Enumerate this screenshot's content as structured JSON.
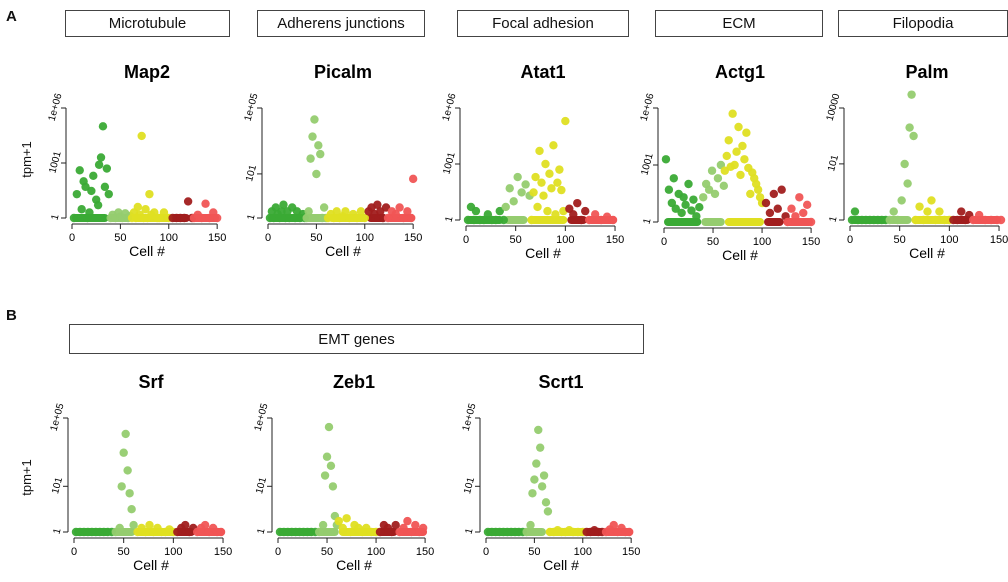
{
  "panels": {
    "A": {
      "letter": "A",
      "ylabel": "tpm+1",
      "categories": [
        "Microtubule",
        "Adherens junctions",
        "Focal adhesion",
        "ECM",
        "Filopodia"
      ]
    },
    "B": {
      "letter": "B",
      "ylabel": "tpm+1",
      "category": "EMT genes"
    }
  },
  "colors": {
    "group1": "#3aaa35",
    "group2": "#95cc6f",
    "group3": "#dfdf22",
    "group4": "#a11d1d",
    "group5": "#f05555"
  },
  "chart_data": [
    {
      "type": "scatter",
      "title": "Map2",
      "xlabel": "Cell #",
      "ylabel": "tpm+1",
      "log_y": true,
      "xlim": [
        0,
        155
      ],
      "yticks": [
        "1",
        "1001",
        "1e+06"
      ],
      "xticks": [
        0,
        50,
        100,
        150
      ],
      "series": [
        {
          "color_key": "group1",
          "x": [
            2,
            5,
            8,
            10,
            12,
            14,
            16,
            18,
            20,
            22,
            25,
            27,
            28,
            30,
            32,
            34,
            36,
            38
          ],
          "y": [
            1,
            20,
            400,
            3,
            100,
            50,
            1,
            2,
            30,
            200,
            10,
            5,
            800,
            2000,
            100000,
            50,
            500,
            20
          ]
        },
        {
          "color_key": "group2",
          "x": [
            40,
            42,
            45,
            48,
            50,
            52,
            55,
            58,
            60
          ],
          "y": [
            1,
            1.5,
            1,
            2,
            1.2,
            1,
            1.8,
            1,
            1.3
          ]
        },
        {
          "color_key": "group3",
          "x": [
            62,
            64,
            66,
            68,
            70,
            72,
            74,
            76,
            78,
            80,
            82,
            85,
            88,
            90,
            95,
            100
          ],
          "y": [
            1,
            2,
            1,
            4,
            1.5,
            30000,
            1,
            3,
            1,
            20,
            1.5,
            2,
            1,
            1,
            2,
            1
          ]
        },
        {
          "color_key": "group4",
          "x": [
            104,
            108,
            112,
            116,
            120,
            124
          ],
          "y": [
            1,
            1,
            1,
            1,
            8,
            1
          ]
        },
        {
          "color_key": "group5",
          "x": [
            126,
            130,
            134,
            138,
            142,
            146,
            150
          ],
          "y": [
            1,
            1.5,
            1,
            6,
            1,
            2,
            1
          ]
        }
      ]
    },
    {
      "type": "scatter",
      "title": "Picalm",
      "xlabel": "Cell #",
      "ylabel": "tpm+1",
      "log_y": true,
      "xlim": [
        0,
        155
      ],
      "yticks": [
        "1",
        "101",
        "1e+05"
      ],
      "xticks": [
        0,
        50,
        100,
        150
      ],
      "series": [
        {
          "color_key": "group1",
          "x": [
            2,
            4,
            6,
            8,
            10,
            12,
            14,
            16,
            18,
            20,
            22,
            25,
            28,
            30,
            33,
            36,
            38
          ],
          "y": [
            1,
            2,
            1,
            3,
            1.5,
            1,
            2,
            4,
            1,
            2,
            1,
            3,
            1,
            2,
            1,
            1.5,
            1
          ]
        },
        {
          "color_key": "group2",
          "x": [
            40,
            42,
            44,
            46,
            48,
            50,
            52,
            54,
            56,
            58,
            60
          ],
          "y": [
            1,
            2,
            500,
            5000,
            30000,
            100,
            2000,
            800,
            1,
            3,
            1
          ]
        },
        {
          "color_key": "group3",
          "x": [
            62,
            65,
            68,
            71,
            74,
            77,
            80,
            84,
            88,
            92,
            96,
            100
          ],
          "y": [
            1,
            1.5,
            1,
            2,
            1,
            1.2,
            2,
            1,
            1.5,
            1,
            2,
            1
          ]
        },
        {
          "color_key": "group4",
          "x": [
            104,
            107,
            110,
            113,
            116,
            119,
            122
          ],
          "y": [
            2,
            3,
            1.5,
            4,
            2,
            1,
            3
          ]
        },
        {
          "color_key": "group5",
          "x": [
            124,
            128,
            132,
            136,
            140,
            144,
            148,
            150
          ],
          "y": [
            1,
            2,
            1.5,
            3,
            1,
            2,
            1,
            60
          ]
        }
      ]
    },
    {
      "type": "scatter",
      "title": "Atat1",
      "xlabel": "Cell #",
      "ylabel": "tpm+1",
      "log_y": true,
      "xlim": [
        0,
        155
      ],
      "yticks": [
        "1",
        "1001",
        "1e+06"
      ],
      "xticks": [
        0,
        50,
        100,
        150
      ],
      "series": [
        {
          "color_key": "group1",
          "x": [
            2,
            5,
            8,
            10,
            14,
            18,
            22,
            26,
            30,
            34,
            38
          ],
          "y": [
            1,
            5,
            1,
            3,
            1,
            1,
            2,
            1,
            1,
            3,
            1
          ]
        },
        {
          "color_key": "group2",
          "x": [
            40,
            44,
            48,
            52,
            56,
            60,
            64
          ],
          "y": [
            5,
            50,
            10,
            200,
            30,
            80,
            20
          ]
        },
        {
          "color_key": "group3",
          "x": [
            66,
            68,
            70,
            72,
            74,
            76,
            78,
            80,
            82,
            84,
            86,
            88,
            90,
            92,
            94,
            96,
            98,
            100
          ],
          "y": [
            1,
            30,
            200,
            5,
            5000,
            100,
            20,
            1000,
            3,
            300,
            50,
            10000,
            2,
            100,
            500,
            40,
            3,
            200000
          ]
        },
        {
          "color_key": "group4",
          "x": [
            104,
            108,
            112,
            116,
            120
          ],
          "y": [
            4,
            2,
            8,
            1,
            3
          ]
        },
        {
          "color_key": "group5",
          "x": [
            124,
            130,
            136,
            142,
            148
          ],
          "y": [
            1,
            2,
            1,
            1.5,
            1
          ]
        }
      ]
    },
    {
      "type": "scatter",
      "title": "Actg1",
      "xlabel": "Cell #",
      "ylabel": "tpm+1",
      "log_y": true,
      "xlim": [
        0,
        155
      ],
      "yticks": [
        "1",
        "1001",
        "1e+06"
      ],
      "xticks": [
        0,
        50,
        100,
        150
      ],
      "series": [
        {
          "color_key": "group1",
          "x": [
            2,
            5,
            8,
            10,
            12,
            15,
            18,
            20,
            22,
            25,
            28,
            30,
            33,
            36
          ],
          "y": [
            2000,
            50,
            10,
            200,
            5,
            30,
            3,
            20,
            8,
            100,
            4,
            15,
            2,
            6
          ]
        },
        {
          "color_key": "group2",
          "x": [
            40,
            43,
            46,
            49,
            52,
            55,
            58,
            61
          ],
          "y": [
            20,
            100,
            50,
            500,
            30,
            200,
            1000,
            80
          ]
        },
        {
          "color_key": "group3",
          "x": [
            62,
            64,
            66,
            68,
            70,
            72,
            74,
            76,
            78,
            80,
            82,
            84,
            86,
            88,
            90,
            92,
            94,
            96,
            98,
            100
          ],
          "y": [
            500,
            3000,
            20000,
            800,
            500000,
            1000,
            5000,
            100000,
            300,
            10000,
            2000,
            50000,
            700,
            30,
            400,
            200,
            100,
            50,
            20,
            10
          ]
        },
        {
          "color_key": "group4",
          "x": [
            104,
            108,
            112,
            116,
            120,
            124
          ],
          "y": [
            10,
            3,
            30,
            5,
            50,
            2
          ]
        },
        {
          "color_key": "group5",
          "x": [
            126,
            130,
            134,
            138,
            142,
            146,
            150
          ],
          "y": [
            1,
            5,
            2,
            20,
            3,
            8,
            1
          ]
        }
      ]
    },
    {
      "type": "scatter",
      "title": "Palm",
      "xlabel": "Cell #",
      "ylabel": "tpm+1",
      "log_y": true,
      "xlim": [
        0,
        155
      ],
      "yticks": [
        "1",
        "101",
        "10000"
      ],
      "xticks": [
        0,
        50,
        100,
        150
      ],
      "series": [
        {
          "color_key": "group1",
          "x": [
            2,
            5,
            8,
            12,
            16,
            20,
            24,
            28,
            32,
            36
          ],
          "y": [
            1,
            2,
            1,
            1,
            1,
            1,
            1,
            1,
            1,
            1
          ]
        },
        {
          "color_key": "group2",
          "x": [
            40,
            44,
            48,
            52,
            55,
            58,
            60,
            62,
            64
          ],
          "y": [
            1,
            2,
            1,
            5,
            100,
            20,
            2000,
            30000,
            1000
          ]
        },
        {
          "color_key": "group3",
          "x": [
            66,
            70,
            74,
            78,
            82,
            86,
            90,
            95,
            100
          ],
          "y": [
            1,
            3,
            1,
            2,
            5,
            1,
            2,
            1,
            1
          ]
        },
        {
          "color_key": "group4",
          "x": [
            104,
            108,
            112,
            116,
            120
          ],
          "y": [
            1,
            1,
            2,
            1,
            1.5
          ]
        },
        {
          "color_key": "group5",
          "x": [
            124,
            130,
            136,
            142,
            148,
            152
          ],
          "y": [
            1,
            1.5,
            1,
            1,
            1,
            1
          ]
        }
      ]
    },
    {
      "type": "scatter",
      "title": "Srf",
      "xlabel": "Cell #",
      "ylabel": "tpm+1",
      "log_y": true,
      "xlim": [
        0,
        155
      ],
      "yticks": [
        "1",
        "101",
        "1e+05"
      ],
      "xticks": [
        0,
        50,
        100,
        150
      ],
      "series": [
        {
          "color_key": "group1",
          "x": [
            2,
            6,
            10,
            14,
            18,
            22,
            26,
            30,
            34,
            38
          ],
          "y": [
            1,
            1,
            1,
            1,
            1,
            1,
            1,
            1,
            1,
            1
          ]
        },
        {
          "color_key": "group2",
          "x": [
            42,
            46,
            48,
            50,
            52,
            54,
            56,
            58,
            60
          ],
          "y": [
            1,
            1.5,
            100,
            3000,
            20000,
            500,
            50,
            10,
            2
          ]
        },
        {
          "color_key": "group3",
          "x": [
            64,
            68,
            72,
            76,
            80,
            84,
            88,
            92,
            96,
            100
          ],
          "y": [
            1,
            1.5,
            1,
            2,
            1,
            1.5,
            1,
            1,
            1.3,
            1
          ]
        },
        {
          "color_key": "group4",
          "x": [
            104,
            108,
            112,
            116,
            120
          ],
          "y": [
            1,
            1.5,
            2,
            1,
            1.5
          ]
        },
        {
          "color_key": "group5",
          "x": [
            124,
            128,
            132,
            136,
            140,
            144,
            148
          ],
          "y": [
            1,
            1.5,
            2,
            1,
            1.5,
            1,
            1
          ]
        }
      ]
    },
    {
      "type": "scatter",
      "title": "Zeb1",
      "xlabel": "Cell #",
      "ylabel": "tpm+1",
      "log_y": true,
      "xlim": [
        0,
        155
      ],
      "yticks": [
        "1",
        "101",
        "1e+05"
      ],
      "xticks": [
        0,
        50,
        100,
        150
      ],
      "series": [
        {
          "color_key": "group1",
          "x": [
            2,
            6,
            10,
            14,
            18,
            22,
            26,
            30,
            34,
            38
          ],
          "y": [
            1,
            1,
            1,
            1,
            1,
            1,
            1,
            1,
            1,
            1
          ]
        },
        {
          "color_key": "group2",
          "x": [
            42,
            46,
            48,
            50,
            52,
            54,
            56,
            58,
            60
          ],
          "y": [
            1,
            2,
            300,
            2000,
            40000,
            800,
            100,
            5,
            2
          ]
        },
        {
          "color_key": "group3",
          "x": [
            62,
            66,
            70,
            74,
            78,
            82,
            86,
            90,
            95,
            100
          ],
          "y": [
            3,
            1.5,
            4,
            1,
            2,
            1.5,
            1,
            1.5,
            1,
            1
          ]
        },
        {
          "color_key": "group4",
          "x": [
            104,
            108,
            112,
            116,
            120
          ],
          "y": [
            1,
            2,
            1.5,
            1,
            2
          ]
        },
        {
          "color_key": "group5",
          "x": [
            124,
            128,
            132,
            136,
            140,
            144,
            148
          ],
          "y": [
            1,
            1.5,
            3,
            1,
            2,
            1,
            1.5
          ]
        }
      ]
    },
    {
      "type": "scatter",
      "title": "Scrt1",
      "xlabel": "Cell #",
      "ylabel": "tpm+1",
      "log_y": true,
      "xlim": [
        0,
        155
      ],
      "yticks": [
        "1",
        "101",
        "1e+05"
      ],
      "xticks": [
        0,
        50,
        100,
        150
      ],
      "series": [
        {
          "color_key": "group1",
          "x": [
            2,
            6,
            10,
            14,
            18,
            22,
            26,
            30,
            34,
            38
          ],
          "y": [
            1,
            1,
            1,
            1,
            1,
            1,
            1,
            1,
            1,
            1
          ]
        },
        {
          "color_key": "group2",
          "x": [
            42,
            46,
            48,
            50,
            52,
            54,
            56,
            58,
            60,
            62,
            64
          ],
          "y": [
            1,
            2,
            50,
            200,
            1000,
            30000,
            5000,
            100,
            300,
            20,
            8
          ]
        },
        {
          "color_key": "group3",
          "x": [
            66,
            70,
            74,
            78,
            82,
            86,
            90,
            95,
            100
          ],
          "y": [
            1,
            1,
            1.2,
            1,
            1,
            1.2,
            1,
            1,
            1
          ]
        },
        {
          "color_key": "group4",
          "x": [
            104,
            108,
            112,
            116,
            120
          ],
          "y": [
            1,
            1,
            1.2,
            1,
            1
          ]
        },
        {
          "color_key": "group5",
          "x": [
            124,
            128,
            132,
            136,
            140,
            144,
            148
          ],
          "y": [
            1,
            1.3,
            2,
            1,
            1.5,
            1,
            1
          ]
        }
      ]
    }
  ]
}
